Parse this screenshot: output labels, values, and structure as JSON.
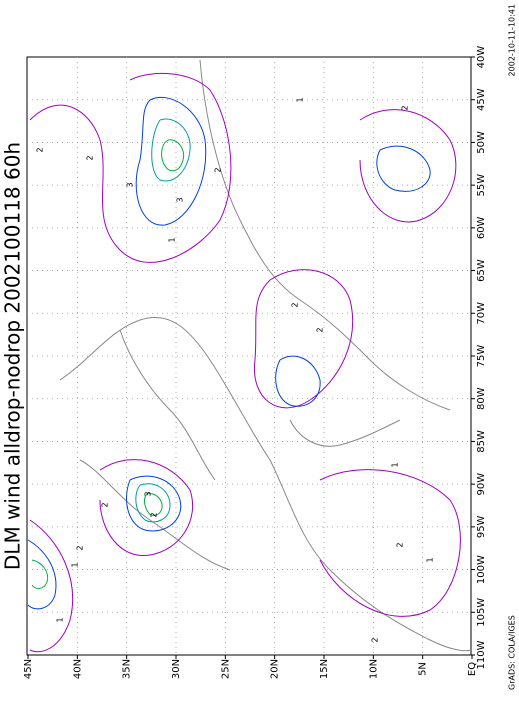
{
  "title": "DLM wind alldrop-nodrop 2002100118 60h",
  "lat_labels": [
    "45N",
    "40N",
    "35N",
    "30N",
    "25N",
    "20N",
    "15N",
    "10N",
    "5N",
    "EQ"
  ],
  "lon_labels": [
    "40W",
    "45W",
    "50W",
    "55W",
    "60W",
    "65W",
    "70W",
    "75W",
    "80W",
    "85W",
    "90W",
    "95W",
    "100W",
    "105W",
    "110W"
  ],
  "footer": "GrADS: COLA/IGES",
  "timestamp": "2002-10-11-10:41",
  "contour_labels": [
    "2",
    "3",
    "2",
    "1",
    "2",
    "3",
    "2",
    "1",
    "2",
    "2",
    "1",
    "2",
    "3",
    "2",
    "1",
    "2",
    "2",
    "1",
    "2",
    "1"
  ]
}
